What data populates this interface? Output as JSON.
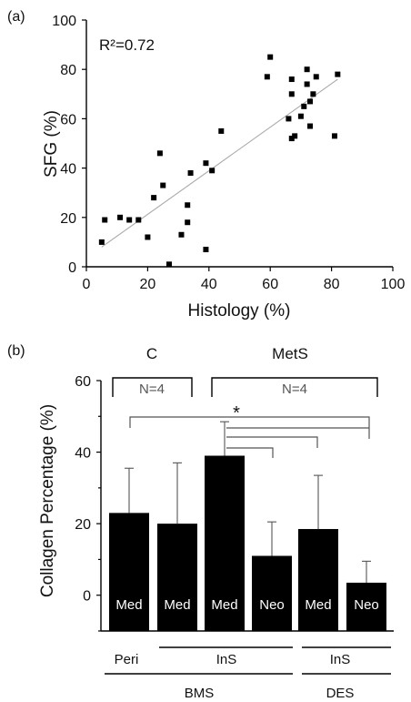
{
  "chart_data": [
    {
      "type": "scatter",
      "panel_label": "(a)",
      "annotation": "R²=0.72",
      "xlabel": "Histology (%)",
      "ylabel": "SFG (%)",
      "xlim": [
        0,
        100
      ],
      "ylim": [
        0,
        100
      ],
      "xticks": [
        "0",
        "20",
        "40",
        "60",
        "80",
        "100"
      ],
      "yticks": [
        "0",
        "20",
        "40",
        "60",
        "80",
        "100"
      ],
      "grid": false,
      "trend_line": {
        "x": [
          5,
          82
        ],
        "y": [
          8,
          76
        ]
      },
      "points": [
        {
          "x": 5,
          "y": 10
        },
        {
          "x": 6,
          "y": 19
        },
        {
          "x": 11,
          "y": 20
        },
        {
          "x": 14,
          "y": 19
        },
        {
          "x": 17,
          "y": 19
        },
        {
          "x": 20,
          "y": 12
        },
        {
          "x": 22,
          "y": 28
        },
        {
          "x": 24,
          "y": 46
        },
        {
          "x": 25,
          "y": 33
        },
        {
          "x": 27,
          "y": 1
        },
        {
          "x": 31,
          "y": 13
        },
        {
          "x": 33,
          "y": 18
        },
        {
          "x": 33,
          "y": 25
        },
        {
          "x": 34,
          "y": 38
        },
        {
          "x": 39,
          "y": 7
        },
        {
          "x": 39,
          "y": 42
        },
        {
          "x": 41,
          "y": 39
        },
        {
          "x": 44,
          "y": 55
        },
        {
          "x": 59,
          "y": 77
        },
        {
          "x": 60,
          "y": 85
        },
        {
          "x": 66,
          "y": 60
        },
        {
          "x": 67,
          "y": 52
        },
        {
          "x": 67,
          "y": 70
        },
        {
          "x": 67,
          "y": 76
        },
        {
          "x": 68,
          "y": 53
        },
        {
          "x": 70,
          "y": 61
        },
        {
          "x": 71,
          "y": 65
        },
        {
          "x": 72,
          "y": 80
        },
        {
          "x": 72,
          "y": 74
        },
        {
          "x": 73,
          "y": 67
        },
        {
          "x": 73,
          "y": 57
        },
        {
          "x": 74,
          "y": 70
        },
        {
          "x": 75,
          "y": 77
        },
        {
          "x": 81,
          "y": 53
        },
        {
          "x": 82,
          "y": 78
        }
      ]
    },
    {
      "type": "bar",
      "panel_label": "(b)",
      "ylabel": "Collagen Percentage (%)",
      "ylim": [
        -10,
        60
      ],
      "yticks": [
        "0",
        "20",
        "40",
        "60"
      ],
      "grid": false,
      "bars": [
        {
          "label": "Med",
          "value": 23,
          "error": 12.5
        },
        {
          "label": "Med",
          "value": 20,
          "error": 17
        },
        {
          "label": "Med",
          "value": 39,
          "error": 9.5
        },
        {
          "label": "Neo",
          "value": 11,
          "error": 9.5
        },
        {
          "label": "Med",
          "value": 18.5,
          "error": 15
        },
        {
          "label": "Neo",
          "value": 3.5,
          "error": 6
        }
      ],
      "group_brackets": [
        {
          "title": "C",
          "n_label": "N=4"
        },
        {
          "title": "MetS",
          "n_label": "N=4"
        }
      ],
      "significance_marker": "*",
      "x_categories": {
        "row1": [
          "Peri",
          "InS",
          "InS"
        ],
        "row2": [
          "BMS",
          "DES"
        ]
      }
    }
  ]
}
